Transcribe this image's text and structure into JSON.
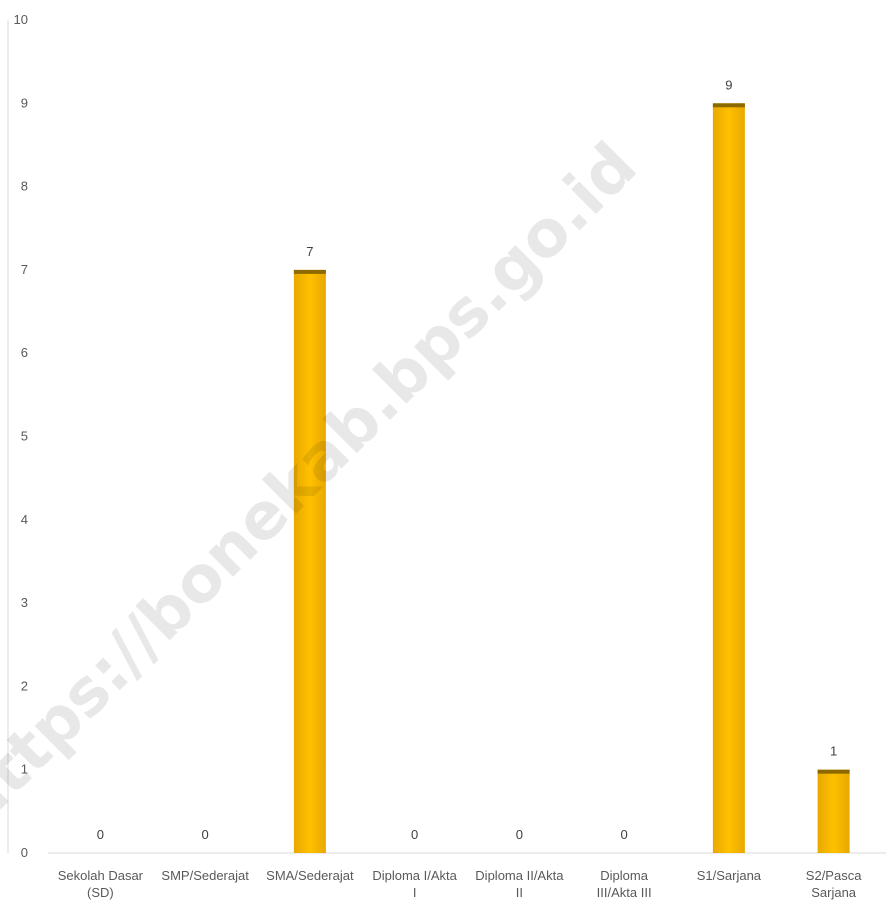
{
  "chart_data": {
    "type": "bar",
    "categories": [
      [
        "Sekolah Dasar",
        "(SD)"
      ],
      [
        "SMP/Sederajat"
      ],
      [
        "SMA/Sederajat"
      ],
      [
        "Diploma I/Akta",
        "I"
      ],
      [
        "Diploma II/Akta",
        "II"
      ],
      [
        "Diploma",
        "III/Akta III"
      ],
      [
        "S1/Sarjana"
      ],
      [
        "S2/Pasca",
        "Sarjana"
      ]
    ],
    "values": [
      0,
      0,
      7,
      0,
      0,
      0,
      9,
      1
    ],
    "ylim": [
      0,
      10
    ],
    "yticks": [
      0,
      1,
      2,
      3,
      4,
      5,
      6,
      7,
      8,
      9,
      10
    ],
    "grid": false,
    "data_labels": true,
    "colors": {
      "bar": "#FFC000",
      "bar_top": "#8C6A00",
      "axis": "#D9D9D9"
    }
  },
  "watermark": "https://bonekab.bps.go.id"
}
